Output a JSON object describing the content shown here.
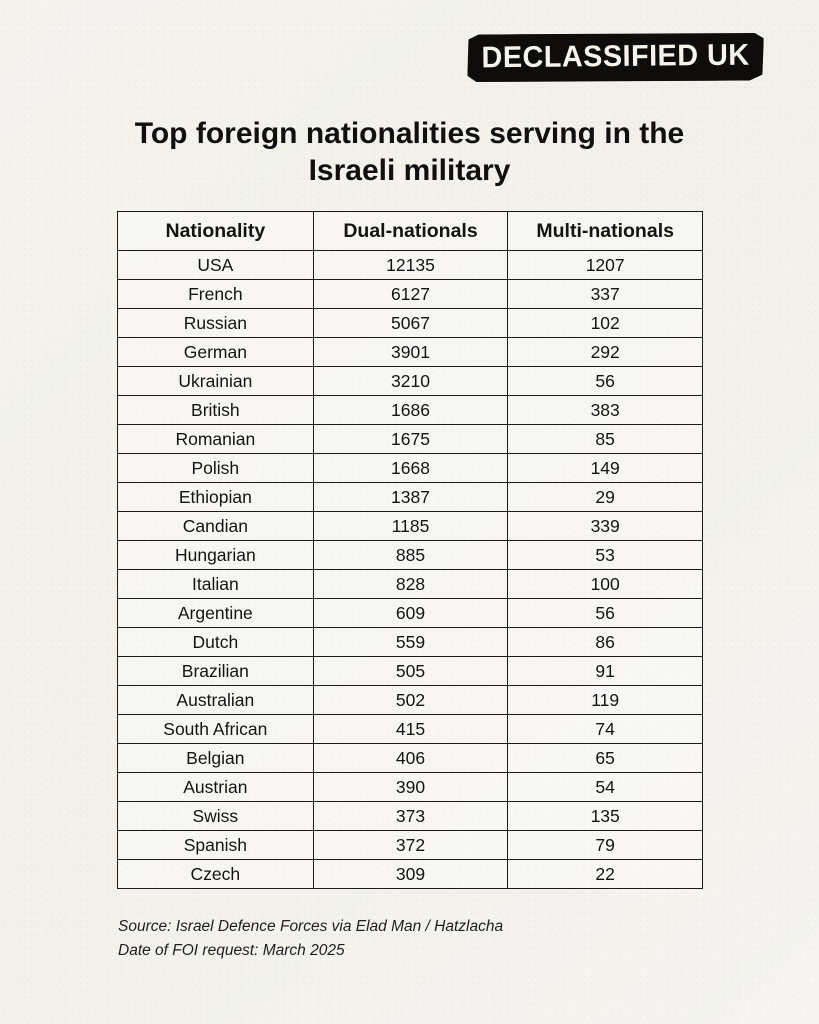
{
  "logo": {
    "text": "DECLASSIFIED UK"
  },
  "title": "Top foreign nationalities serving in the Israeli military",
  "chart_data": {
    "type": "table",
    "title": "Top foreign nationalities serving in the Israeli military",
    "columns": [
      "Nationality",
      "Dual-nationals",
      "Multi-nationals"
    ],
    "rows": [
      [
        "USA",
        12135,
        1207
      ],
      [
        "French",
        6127,
        337
      ],
      [
        "Russian",
        5067,
        102
      ],
      [
        "German",
        3901,
        292
      ],
      [
        "Ukrainian",
        3210,
        56
      ],
      [
        "British",
        1686,
        383
      ],
      [
        "Romanian",
        1675,
        85
      ],
      [
        "Polish",
        1668,
        149
      ],
      [
        "Ethiopian",
        1387,
        29
      ],
      [
        "Candian",
        1185,
        339
      ],
      [
        "Hungarian",
        885,
        53
      ],
      [
        "Italian",
        828,
        100
      ],
      [
        "Argentine",
        609,
        56
      ],
      [
        "Dutch",
        559,
        86
      ],
      [
        "Brazilian",
        505,
        91
      ],
      [
        "Australian",
        502,
        119
      ],
      [
        "South African",
        415,
        74
      ],
      [
        "Belgian",
        406,
        65
      ],
      [
        "Austrian",
        390,
        54
      ],
      [
        "Swiss",
        373,
        135
      ],
      [
        "Spanish",
        372,
        79
      ],
      [
        "Czech",
        309,
        22
      ]
    ]
  },
  "footer": {
    "source": "Source: Israel Defence Forces via Elad Man / Hatzlacha",
    "foi_date": "Date of FOI request: March 2025"
  },
  "colors": {
    "paper": "#f3f2ed",
    "ink": "#141414",
    "logo_bg": "#0e0d0b",
    "logo_text": "#f5f3ec"
  }
}
